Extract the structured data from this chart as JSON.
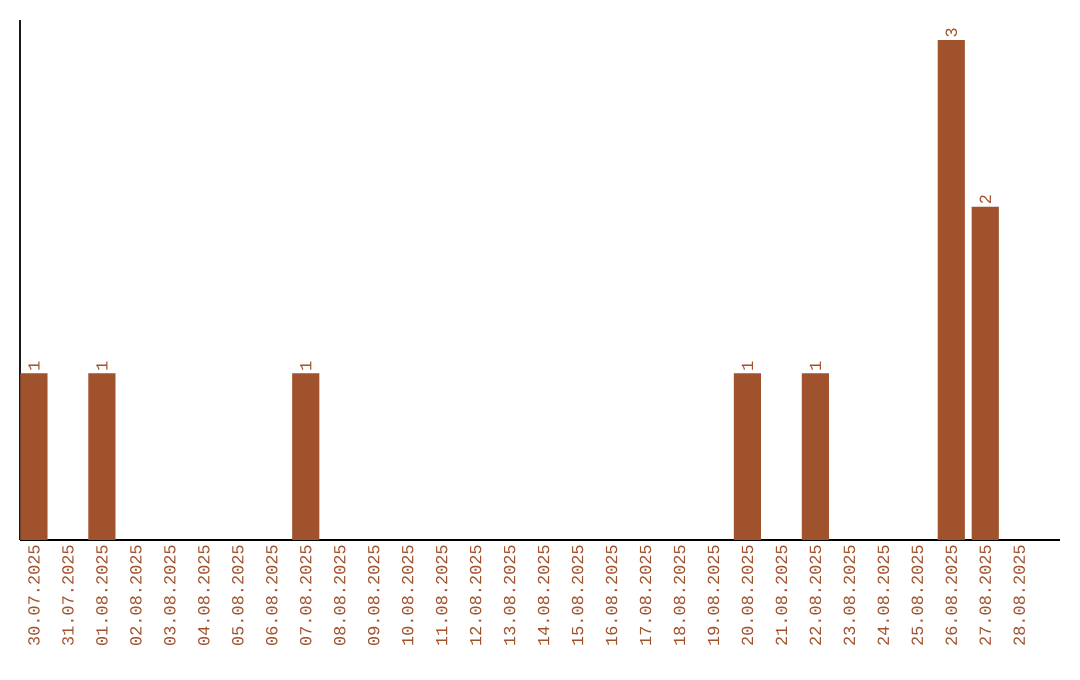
{
  "chart_data": {
    "type": "bar",
    "color": "#a0522d",
    "data_labels": true,
    "categories": [
      "30.07.2025",
      "31.07.2025",
      "01.08.2025",
      "02.08.2025",
      "03.08.2025",
      "04.08.2025",
      "05.08.2025",
      "06.08.2025",
      "07.08.2025",
      "08.08.2025",
      "09.08.2025",
      "10.08.2025",
      "11.08.2025",
      "12.08.2025",
      "13.08.2025",
      "14.08.2025",
      "15.08.2025",
      "16.08.2025",
      "17.08.2025",
      "18.08.2025",
      "19.08.2025",
      "20.08.2025",
      "21.08.2025",
      "22.08.2025",
      "23.08.2025",
      "24.08.2025",
      "25.08.2025",
      "26.08.2025",
      "27.08.2025",
      "28.08.2025"
    ],
    "values": [
      1,
      null,
      1,
      null,
      null,
      null,
      null,
      null,
      1,
      null,
      null,
      null,
      null,
      null,
      null,
      null,
      null,
      null,
      null,
      null,
      null,
      1,
      null,
      1,
      null,
      null,
      null,
      3,
      2,
      null
    ]
  }
}
